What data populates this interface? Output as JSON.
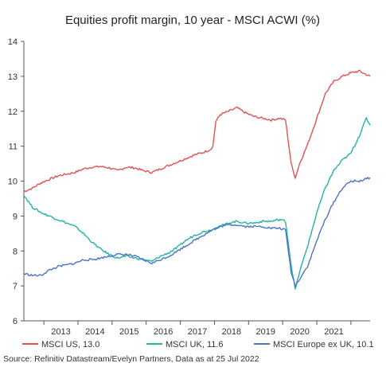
{
  "chart_data": {
    "type": "line",
    "title": "Equities profit margin, 10 year - MSCI ACWI (%)",
    "xlabel": "",
    "ylabel": "",
    "x_ticks": [
      "2013",
      "2014",
      "2015",
      "2016",
      "2017",
      "2018",
      "2019",
      "2020",
      "2021"
    ],
    "xlim": [
      "2012-06-01",
      "2022-07-25"
    ],
    "ylim": [
      6,
      14
    ],
    "y_ticks": [
      "6",
      "7",
      "8",
      "9",
      "10",
      "11",
      "12",
      "13",
      "14"
    ],
    "grid": false,
    "legend": "bottom",
    "series": [
      {
        "name": "MSCI US, 13.0",
        "color": "#e05252",
        "points": [
          [
            "2012-06-01",
            9.7
          ],
          [
            "2012-09-01",
            9.8
          ],
          [
            "2012-12-01",
            9.95
          ],
          [
            "2013-03-01",
            10.05
          ],
          [
            "2013-06-01",
            10.15
          ],
          [
            "2013-09-01",
            10.2
          ],
          [
            "2013-12-01",
            10.25
          ],
          [
            "2014-03-01",
            10.35
          ],
          [
            "2014-06-01",
            10.4
          ],
          [
            "2014-09-01",
            10.42
          ],
          [
            "2014-12-01",
            10.38
          ],
          [
            "2015-03-01",
            10.3
          ],
          [
            "2015-06-01",
            10.4
          ],
          [
            "2015-09-01",
            10.38
          ],
          [
            "2015-12-01",
            10.3
          ],
          [
            "2016-03-01",
            10.25
          ],
          [
            "2016-06-01",
            10.35
          ],
          [
            "2016-09-01",
            10.45
          ],
          [
            "2016-12-01",
            10.55
          ],
          [
            "2017-03-01",
            10.65
          ],
          [
            "2017-06-01",
            10.75
          ],
          [
            "2017-09-01",
            10.82
          ],
          [
            "2017-11-15",
            10.9
          ],
          [
            "2017-12-15",
            11.0
          ],
          [
            "2018-01-15",
            11.7
          ],
          [
            "2018-03-01",
            11.9
          ],
          [
            "2018-06-01",
            12.0
          ],
          [
            "2018-09-01",
            12.1
          ],
          [
            "2018-12-01",
            11.95
          ],
          [
            "2019-03-01",
            11.85
          ],
          [
            "2019-06-01",
            11.8
          ],
          [
            "2019-09-01",
            11.75
          ],
          [
            "2019-12-01",
            11.8
          ],
          [
            "2020-02-01",
            11.75
          ],
          [
            "2020-04-01",
            10.5
          ],
          [
            "2020-05-15",
            10.1
          ],
          [
            "2020-07-01",
            10.5
          ],
          [
            "2020-10-01",
            11.1
          ],
          [
            "2021-01-01",
            11.8
          ],
          [
            "2021-04-01",
            12.5
          ],
          [
            "2021-07-01",
            12.85
          ],
          [
            "2021-10-01",
            13.0
          ],
          [
            "2022-01-01",
            13.1
          ],
          [
            "2022-04-01",
            13.15
          ],
          [
            "2022-07-25",
            13.0
          ]
        ]
      },
      {
        "name": "MSCI UK, 11.6",
        "color": "#22b3a3",
        "points": [
          [
            "2012-06-01",
            9.6
          ],
          [
            "2012-09-01",
            9.25
          ],
          [
            "2012-12-01",
            9.1
          ],
          [
            "2013-03-01",
            9.0
          ],
          [
            "2013-06-01",
            8.9
          ],
          [
            "2013-09-01",
            8.8
          ],
          [
            "2013-12-01",
            8.7
          ],
          [
            "2014-03-01",
            8.5
          ],
          [
            "2014-06-01",
            8.25
          ],
          [
            "2014-09-01",
            8.05
          ],
          [
            "2014-12-01",
            7.9
          ],
          [
            "2015-03-01",
            7.8
          ],
          [
            "2015-06-01",
            7.85
          ],
          [
            "2015-09-01",
            7.8
          ],
          [
            "2015-12-01",
            7.75
          ],
          [
            "2016-03-01",
            7.7
          ],
          [
            "2016-06-01",
            7.85
          ],
          [
            "2016-09-01",
            7.95
          ],
          [
            "2016-12-01",
            8.1
          ],
          [
            "2017-03-01",
            8.3
          ],
          [
            "2017-06-01",
            8.45
          ],
          [
            "2017-09-01",
            8.55
          ],
          [
            "2017-12-01",
            8.6
          ],
          [
            "2018-03-01",
            8.7
          ],
          [
            "2018-06-01",
            8.8
          ],
          [
            "2018-09-01",
            8.85
          ],
          [
            "2018-12-01",
            8.8
          ],
          [
            "2019-03-01",
            8.8
          ],
          [
            "2019-06-01",
            8.85
          ],
          [
            "2019-09-01",
            8.85
          ],
          [
            "2019-12-01",
            8.9
          ],
          [
            "2020-02-01",
            8.85
          ],
          [
            "2020-04-01",
            7.6
          ],
          [
            "2020-05-15",
            6.9
          ],
          [
            "2020-07-01",
            7.4
          ],
          [
            "2020-10-01",
            8.2
          ],
          [
            "2021-01-01",
            9.1
          ],
          [
            "2021-04-01",
            9.8
          ],
          [
            "2021-07-01",
            10.3
          ],
          [
            "2021-10-01",
            10.6
          ],
          [
            "2022-01-01",
            10.8
          ],
          [
            "2022-04-01",
            11.3
          ],
          [
            "2022-06-15",
            11.8
          ],
          [
            "2022-07-25",
            11.6
          ]
        ]
      },
      {
        "name": "MSCI Europe ex UK, 10.1",
        "color": "#4c72c9",
        "points": [
          [
            "2012-06-01",
            7.35
          ],
          [
            "2012-09-01",
            7.3
          ],
          [
            "2012-12-01",
            7.3
          ],
          [
            "2013-03-01",
            7.45
          ],
          [
            "2013-06-01",
            7.55
          ],
          [
            "2013-09-01",
            7.6
          ],
          [
            "2013-12-01",
            7.65
          ],
          [
            "2014-03-01",
            7.75
          ],
          [
            "2014-06-01",
            7.75
          ],
          [
            "2014-09-01",
            7.8
          ],
          [
            "2014-12-01",
            7.85
          ],
          [
            "2015-03-01",
            7.9
          ],
          [
            "2015-06-01",
            7.9
          ],
          [
            "2015-09-01",
            7.85
          ],
          [
            "2015-12-01",
            7.75
          ],
          [
            "2016-03-01",
            7.65
          ],
          [
            "2016-06-01",
            7.75
          ],
          [
            "2016-09-01",
            7.85
          ],
          [
            "2016-12-01",
            8.0
          ],
          [
            "2017-03-01",
            8.15
          ],
          [
            "2017-06-01",
            8.3
          ],
          [
            "2017-09-01",
            8.45
          ],
          [
            "2017-12-01",
            8.6
          ],
          [
            "2018-03-01",
            8.7
          ],
          [
            "2018-06-01",
            8.75
          ],
          [
            "2018-09-01",
            8.75
          ],
          [
            "2018-12-01",
            8.7
          ],
          [
            "2019-03-01",
            8.7
          ],
          [
            "2019-06-01",
            8.7
          ],
          [
            "2019-09-01",
            8.65
          ],
          [
            "2019-12-01",
            8.65
          ],
          [
            "2020-02-01",
            8.6
          ],
          [
            "2020-04-01",
            7.4
          ],
          [
            "2020-05-15",
            7.0
          ],
          [
            "2020-07-01",
            7.2
          ],
          [
            "2020-10-01",
            7.6
          ],
          [
            "2021-01-01",
            8.3
          ],
          [
            "2021-04-01",
            8.9
          ],
          [
            "2021-07-01",
            9.4
          ],
          [
            "2021-10-01",
            9.8
          ],
          [
            "2022-01-01",
            10.0
          ],
          [
            "2022-04-01",
            10.0
          ],
          [
            "2022-07-25",
            10.1
          ]
        ]
      }
    ]
  },
  "source": "Source: Refinitiv Datastream/Evelyn Partners, Data as at 25 Jul 2022"
}
